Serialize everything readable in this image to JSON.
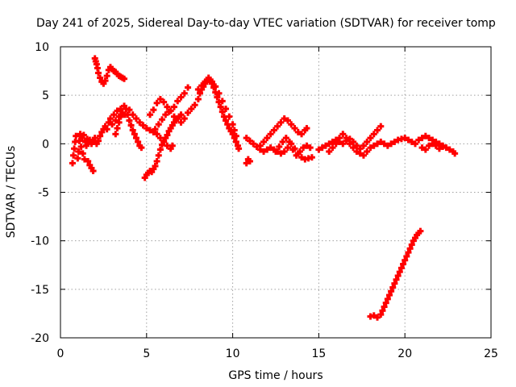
{
  "chart_data": {
    "type": "scatter",
    "title": "Day 241 of 2025, Sidereal Day-to-day VTEC variation (SDTVAR) for receiver tomp",
    "xlabel": "GPS time / hours",
    "ylabel": "SDTVAR / TECUs",
    "xlim": [
      0,
      25
    ],
    "ylim": [
      -20,
      10
    ],
    "xticks": [
      0,
      5,
      10,
      15,
      20,
      25
    ],
    "yticks": [
      -20,
      -15,
      -10,
      -5,
      0,
      5,
      10
    ],
    "grid": true,
    "marker": "plus",
    "colors": {
      "series": "#ff0000",
      "axes": "#000000",
      "grid": "#a0a0a0"
    },
    "series": [
      {
        "points": [
          [
            0.7,
            -2.0
          ],
          [
            0.75,
            -1.2
          ],
          [
            0.8,
            -0.5
          ],
          [
            0.85,
            0.2
          ],
          [
            0.9,
            0.8
          ],
          [
            1.0,
            -1.5
          ],
          [
            1.05,
            -0.8
          ],
          [
            1.1,
            0.3
          ],
          [
            1.15,
            1.0
          ],
          [
            1.2,
            -0.3
          ],
          [
            1.25,
            0.6
          ],
          [
            1.3,
            -1.0
          ],
          [
            1.35,
            0.9
          ],
          [
            1.4,
            -1.6
          ],
          [
            1.45,
            0.2
          ],
          [
            1.5,
            -0.2
          ],
          [
            1.55,
            0.5
          ],
          [
            1.6,
            -1.8
          ],
          [
            1.7,
            -2.2
          ],
          [
            1.8,
            -2.5
          ],
          [
            1.9,
            -2.8
          ],
          [
            1.5,
            0.3
          ],
          [
            1.6,
            0.1
          ],
          [
            1.7,
            0.4
          ],
          [
            1.8,
            0.0
          ],
          [
            1.9,
            0.2
          ],
          [
            2.0,
            0.6
          ],
          [
            2.1,
            0.0
          ],
          [
            2.2,
            0.3
          ],
          [
            2.3,
            0.8
          ],
          [
            2.4,
            1.2
          ],
          [
            2.5,
            1.5
          ],
          [
            2.6,
            1.8
          ],
          [
            2.7,
            1.5
          ],
          [
            2.8,
            2.2
          ],
          [
            2.9,
            2.6
          ],
          [
            3.0,
            2.0
          ],
          [
            3.1,
            3.0
          ],
          [
            3.2,
            2.4
          ],
          [
            3.3,
            3.4
          ],
          [
            3.4,
            2.8
          ],
          [
            3.5,
            3.6
          ],
          [
            3.6,
            3.2
          ],
          [
            3.7,
            3.9
          ],
          [
            3.75,
            3.0
          ],
          [
            3.2,
            1.0
          ],
          [
            3.3,
            1.6
          ],
          [
            3.4,
            2.2
          ],
          [
            3.5,
            2.8
          ],
          [
            3.6,
            3.0
          ],
          [
            2.0,
            8.8
          ],
          [
            2.05,
            8.5
          ],
          [
            2.1,
            8.2
          ],
          [
            2.15,
            7.8
          ],
          [
            2.2,
            7.3
          ],
          [
            2.3,
            6.8
          ],
          [
            2.4,
            6.4
          ],
          [
            2.5,
            6.2
          ],
          [
            2.6,
            6.5
          ],
          [
            2.7,
            7.0
          ],
          [
            2.8,
            7.6
          ],
          [
            2.9,
            7.9
          ],
          [
            3.0,
            7.7
          ],
          [
            3.1,
            7.5
          ],
          [
            3.2,
            7.4
          ],
          [
            3.3,
            7.2
          ],
          [
            3.4,
            7.0
          ],
          [
            3.5,
            6.9
          ],
          [
            3.6,
            6.8
          ],
          [
            3.7,
            6.7
          ],
          [
            3.8,
            3.6
          ],
          [
            3.9,
            3.0
          ],
          [
            4.0,
            2.4
          ],
          [
            4.1,
            1.9
          ],
          [
            4.2,
            1.4
          ],
          [
            4.3,
            1.0
          ],
          [
            4.4,
            0.6
          ],
          [
            4.5,
            0.2
          ],
          [
            4.6,
            -0.2
          ],
          [
            4.7,
            -0.4
          ],
          [
            4.0,
            3.5
          ],
          [
            4.2,
            3.0
          ],
          [
            4.4,
            2.6
          ],
          [
            4.6,
            2.2
          ],
          [
            4.8,
            1.9
          ],
          [
            5.0,
            1.6
          ],
          [
            5.2,
            1.4
          ],
          [
            5.4,
            1.2
          ],
          [
            5.6,
            1.0
          ],
          [
            5.8,
            0.6
          ],
          [
            6.0,
            0.2
          ],
          [
            6.2,
            -0.2
          ],
          [
            6.4,
            -0.5
          ],
          [
            6.5,
            -0.2
          ],
          [
            4.9,
            -3.5
          ],
          [
            5.0,
            -3.2
          ],
          [
            5.1,
            -3.0
          ],
          [
            5.2,
            -2.8
          ],
          [
            5.3,
            -2.9
          ],
          [
            5.4,
            -2.6
          ],
          [
            5.5,
            -2.3
          ],
          [
            5.6,
            -1.8
          ],
          [
            5.7,
            -1.2
          ],
          [
            5.8,
            -0.6
          ],
          [
            5.9,
            -0.1
          ],
          [
            6.0,
            0.3
          ],
          [
            6.1,
            0.6
          ],
          [
            6.2,
            0.9
          ],
          [
            6.3,
            1.3
          ],
          [
            6.4,
            1.6
          ],
          [
            6.5,
            1.9
          ],
          [
            6.6,
            2.2
          ],
          [
            6.7,
            2.4
          ],
          [
            6.8,
            2.6
          ],
          [
            6.9,
            2.8
          ],
          [
            7.0,
            3.0
          ],
          [
            5.2,
            3.0
          ],
          [
            5.4,
            3.5
          ],
          [
            5.6,
            4.2
          ],
          [
            5.8,
            4.6
          ],
          [
            6.0,
            4.3
          ],
          [
            6.2,
            3.8
          ],
          [
            6.4,
            3.4
          ],
          [
            6.6,
            3.8
          ],
          [
            6.8,
            4.4
          ],
          [
            7.0,
            4.8
          ],
          [
            7.2,
            5.2
          ],
          [
            7.4,
            5.8
          ],
          [
            5.5,
            1.5
          ],
          [
            5.7,
            2.0
          ],
          [
            5.9,
            2.5
          ],
          [
            6.1,
            3.0
          ],
          [
            6.3,
            3.3
          ],
          [
            6.6,
            2.8
          ],
          [
            7.0,
            2.2
          ],
          [
            7.2,
            2.6
          ],
          [
            7.4,
            3.2
          ],
          [
            7.6,
            3.6
          ],
          [
            7.8,
            4.0
          ],
          [
            8.0,
            4.6
          ],
          [
            8.1,
            5.2
          ],
          [
            8.2,
            5.6
          ],
          [
            8.3,
            5.9
          ],
          [
            8.4,
            6.2
          ],
          [
            8.5,
            6.5
          ],
          [
            8.6,
            6.8
          ],
          [
            8.7,
            6.6
          ],
          [
            8.8,
            6.2
          ],
          [
            8.9,
            5.8
          ],
          [
            9.0,
            5.3
          ],
          [
            9.1,
            4.8
          ],
          [
            9.2,
            4.3
          ],
          [
            9.3,
            3.8
          ],
          [
            9.4,
            3.3
          ],
          [
            9.5,
            2.8
          ],
          [
            9.6,
            2.4
          ],
          [
            9.7,
            2.0
          ],
          [
            9.8,
            1.6
          ],
          [
            9.9,
            1.3
          ],
          [
            10.0,
            1.0
          ],
          [
            10.1,
            0.6
          ],
          [
            10.2,
            0.2
          ],
          [
            10.3,
            -0.2
          ],
          [
            10.35,
            -0.5
          ],
          [
            8.0,
            5.6
          ],
          [
            8.2,
            6.0
          ],
          [
            8.4,
            6.4
          ],
          [
            8.6,
            6.6
          ],
          [
            8.8,
            6.4
          ],
          [
            9.0,
            5.9
          ],
          [
            9.2,
            5.2
          ],
          [
            9.4,
            4.4
          ],
          [
            9.6,
            3.6
          ],
          [
            9.8,
            2.8
          ],
          [
            10.0,
            2.0
          ],
          [
            10.1,
            1.4
          ],
          [
            10.2,
            0.8
          ],
          [
            10.8,
            -2.0
          ],
          [
            10.9,
            -1.6
          ],
          [
            11.0,
            -1.8
          ],
          [
            10.8,
            0.6
          ],
          [
            11.0,
            0.3
          ],
          [
            11.2,
            0.0
          ],
          [
            11.4,
            -0.3
          ],
          [
            11.6,
            -0.6
          ],
          [
            11.8,
            -0.8
          ],
          [
            12.0,
            -0.6
          ],
          [
            12.2,
            -0.4
          ],
          [
            12.4,
            -0.6
          ],
          [
            12.6,
            -0.8
          ],
          [
            12.8,
            -1.0
          ],
          [
            13.0,
            -0.8
          ],
          [
            13.2,
            -0.4
          ],
          [
            13.4,
            0.0
          ],
          [
            13.6,
            -0.5
          ],
          [
            13.8,
            -1.0
          ],
          [
            14.0,
            -1.4
          ],
          [
            14.2,
            -1.6
          ],
          [
            14.4,
            -1.5
          ],
          [
            14.6,
            -1.4
          ],
          [
            11.6,
            -0.2
          ],
          [
            11.8,
            0.2
          ],
          [
            12.0,
            0.6
          ],
          [
            12.2,
            1.0
          ],
          [
            12.4,
            1.4
          ],
          [
            12.6,
            1.8
          ],
          [
            12.8,
            2.2
          ],
          [
            13.0,
            2.6
          ],
          [
            13.2,
            2.4
          ],
          [
            13.4,
            2.0
          ],
          [
            13.6,
            1.6
          ],
          [
            13.8,
            1.2
          ],
          [
            14.0,
            1.0
          ],
          [
            14.2,
            1.4
          ],
          [
            14.3,
            1.6
          ],
          [
            12.5,
            -0.8
          ],
          [
            12.7,
            -0.3
          ],
          [
            12.9,
            0.2
          ],
          [
            13.1,
            0.6
          ],
          [
            13.3,
            0.2
          ],
          [
            13.5,
            -0.6
          ],
          [
            13.7,
            -1.2
          ],
          [
            13.9,
            -0.8
          ],
          [
            14.1,
            -0.4
          ],
          [
            14.3,
            -0.2
          ],
          [
            14.5,
            -0.4
          ],
          [
            15.0,
            -0.6
          ],
          [
            15.2,
            -0.4
          ],
          [
            15.4,
            -0.2
          ],
          [
            15.6,
            0.0
          ],
          [
            15.8,
            0.2
          ],
          [
            16.0,
            0.4
          ],
          [
            16.2,
            0.2
          ],
          [
            16.4,
            0.0
          ],
          [
            16.6,
            0.3
          ],
          [
            16.8,
            0.5
          ],
          [
            17.0,
            0.2
          ],
          [
            17.2,
            -0.2
          ],
          [
            17.4,
            -0.5
          ],
          [
            17.6,
            -0.2
          ],
          [
            17.8,
            0.2
          ],
          [
            18.0,
            0.6
          ],
          [
            18.2,
            1.0
          ],
          [
            18.4,
            1.4
          ],
          [
            18.6,
            1.8
          ],
          [
            15.6,
            -0.8
          ],
          [
            15.8,
            -0.4
          ],
          [
            16.0,
            0.0
          ],
          [
            16.2,
            0.6
          ],
          [
            16.4,
            1.0
          ],
          [
            16.6,
            0.6
          ],
          [
            16.8,
            0.0
          ],
          [
            17.0,
            -0.4
          ],
          [
            17.2,
            -0.8
          ],
          [
            17.4,
            -1.0
          ],
          [
            17.6,
            -1.2
          ],
          [
            17.8,
            -0.8
          ],
          [
            18.0,
            -0.4
          ],
          [
            18.2,
            -0.2
          ],
          [
            18.4,
            0.0
          ],
          [
            18.6,
            0.2
          ],
          [
            18.8,
            0.0
          ],
          [
            19.0,
            -0.2
          ],
          [
            19.2,
            0.0
          ],
          [
            19.4,
            0.2
          ],
          [
            19.6,
            0.4
          ],
          [
            19.8,
            0.5
          ],
          [
            20.0,
            0.6
          ],
          [
            20.2,
            0.4
          ],
          [
            20.4,
            0.2
          ],
          [
            20.6,
            0.0
          ],
          [
            20.8,
            0.4
          ],
          [
            21.0,
            0.6
          ],
          [
            21.2,
            0.8
          ],
          [
            21.4,
            0.6
          ],
          [
            21.6,
            0.4
          ],
          [
            21.8,
            0.2
          ],
          [
            22.0,
            0.0
          ],
          [
            22.2,
            -0.2
          ],
          [
            22.4,
            -0.4
          ],
          [
            22.6,
            -0.6
          ],
          [
            22.8,
            -0.8
          ],
          [
            22.9,
            -1.0
          ],
          [
            21.0,
            -0.4
          ],
          [
            21.2,
            -0.6
          ],
          [
            21.4,
            -0.2
          ],
          [
            21.6,
            0.0
          ],
          [
            21.8,
            -0.2
          ],
          [
            22.0,
            -0.5
          ],
          [
            22.2,
            -0.3
          ],
          [
            18.0,
            -17.8
          ],
          [
            18.2,
            -17.7
          ],
          [
            18.4,
            -17.9
          ],
          [
            18.6,
            -17.6
          ],
          [
            18.7,
            -17.2
          ],
          [
            18.8,
            -16.8
          ],
          [
            18.9,
            -16.4
          ],
          [
            19.0,
            -16.0
          ],
          [
            19.1,
            -15.6
          ],
          [
            19.2,
            -15.2
          ],
          [
            19.3,
            -14.8
          ],
          [
            19.4,
            -14.4
          ],
          [
            19.5,
            -14.0
          ],
          [
            19.6,
            -13.6
          ],
          [
            19.7,
            -13.2
          ],
          [
            19.8,
            -12.8
          ],
          [
            19.9,
            -12.4
          ],
          [
            20.0,
            -12.0
          ],
          [
            20.1,
            -11.6
          ],
          [
            20.2,
            -11.2
          ],
          [
            20.3,
            -10.8
          ],
          [
            20.4,
            -10.4
          ],
          [
            20.5,
            -10.0
          ],
          [
            20.6,
            -9.7
          ],
          [
            20.7,
            -9.4
          ],
          [
            20.8,
            -9.2
          ],
          [
            20.9,
            -9.0
          ]
        ]
      }
    ]
  }
}
